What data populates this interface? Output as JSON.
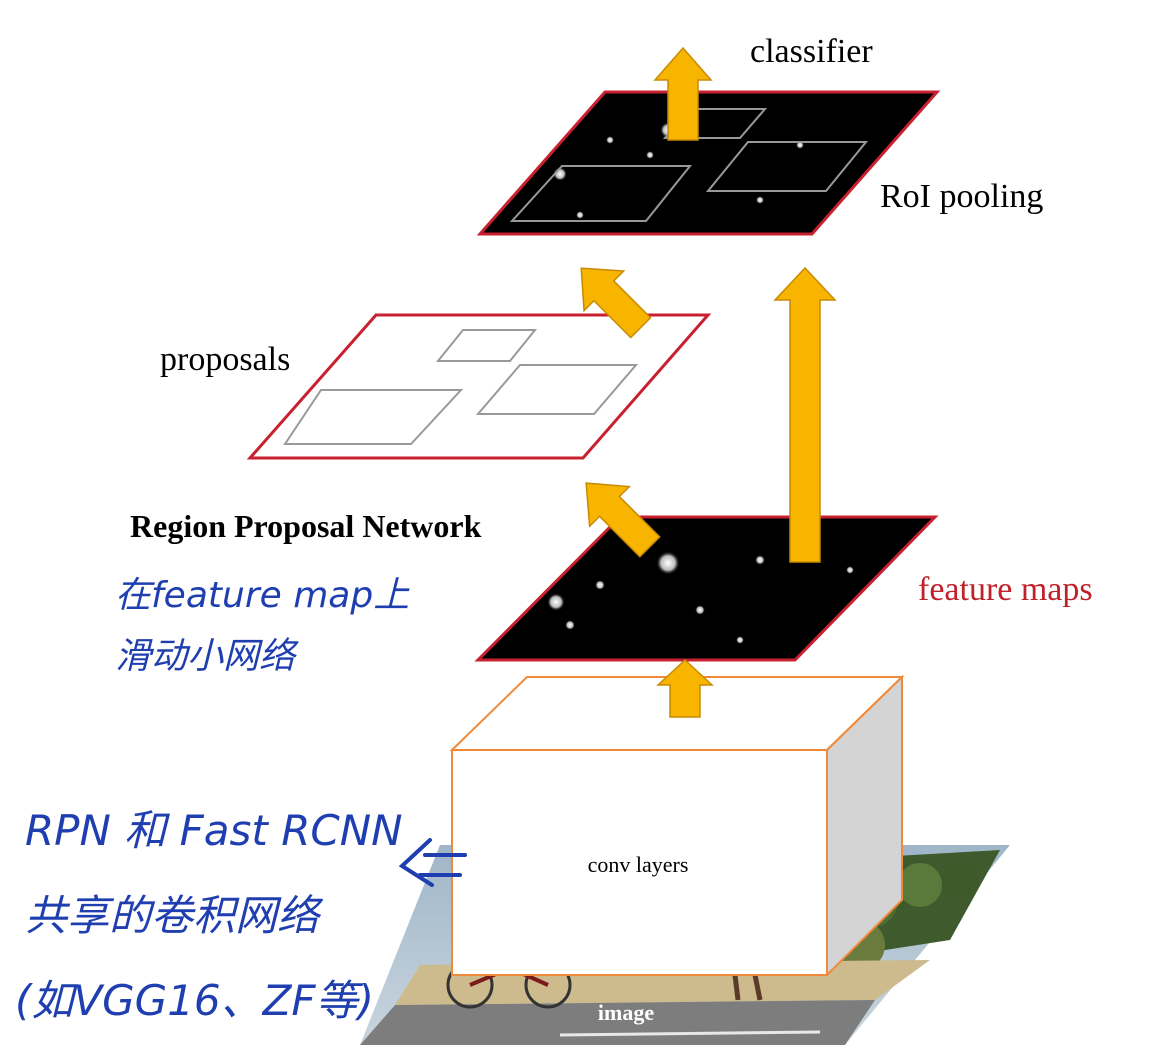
{
  "labels": {
    "classifier": "classifier",
    "roi_pooling": "RoI pooling",
    "proposals": "proposals",
    "rpn": "Region Proposal Network",
    "feature_maps": "feature maps",
    "conv_layers": "conv layers",
    "image": "image"
  },
  "annotations": {
    "rpn_note_line1": "在feature map上",
    "rpn_note_line2": "滑动小网络",
    "shared_line1": "RPN 和 Fast RCNN",
    "shared_line2": "共享的卷积网络",
    "shared_line3": "(如VGG16、ZF等)"
  },
  "colors": {
    "arrow_fill": "#f7b500",
    "arrow_stroke": "#c98a00",
    "plane_border": "#c8202f",
    "conv_border": "#ef8a3a",
    "feature_label": "#c0202a",
    "handwriting": "#1f3fb0",
    "feature_map_fill": "#000000",
    "box_outline": "#999999",
    "conv_side": "#d4d4d4"
  }
}
